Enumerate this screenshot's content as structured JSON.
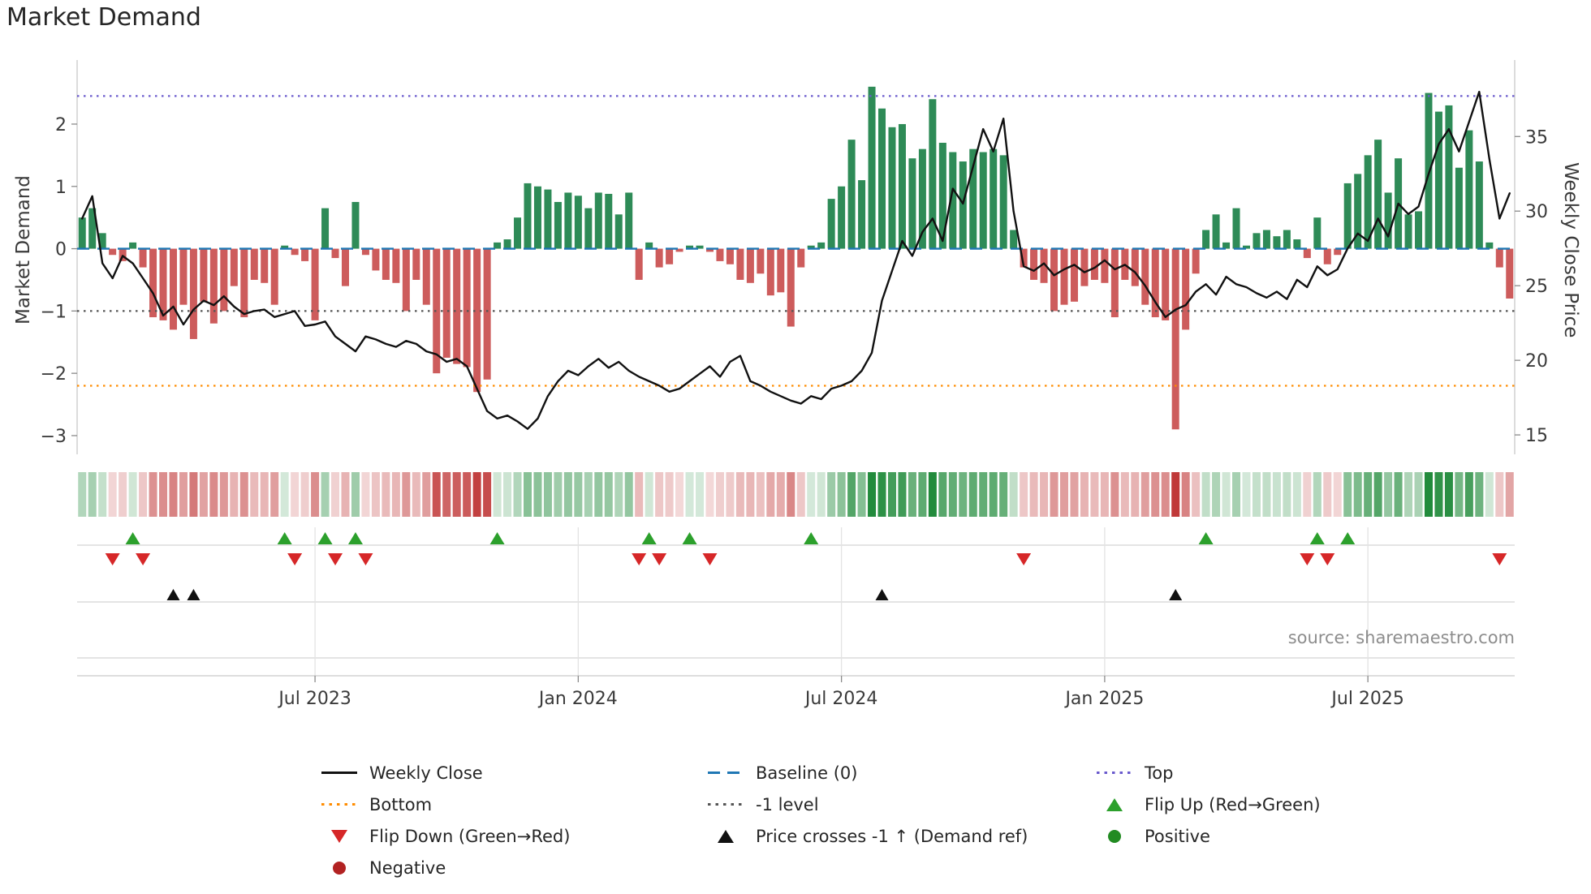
{
  "title": "Market Demand",
  "source": "source: sharemaestro.com",
  "axes": {
    "left_label": "Market Demand",
    "right_label": "Weekly Close Price",
    "left_ticks": [
      2,
      1,
      0,
      -1,
      -2,
      -3
    ],
    "right_ticks": [
      35,
      30,
      25,
      20,
      15
    ],
    "x_ticks": [
      {
        "label": "Jul 2023",
        "week": 23
      },
      {
        "label": "Jan 2024",
        "week": 49
      },
      {
        "label": "Jul 2024",
        "week": 75
      },
      {
        "label": "Jan 2025",
        "week": 101
      },
      {
        "label": "Jul 2025",
        "week": 127
      }
    ]
  },
  "chart_data": {
    "type": "bar",
    "n_weeks": 142,
    "ylim_left": [
      -3.3,
      2.95
    ],
    "ylim_right": [
      13.7,
      39.8
    ],
    "series": [
      {
        "name": "Market Demand",
        "type": "bar",
        "axis": "left",
        "values": [
          0.5,
          0.65,
          0.25,
          -0.1,
          -0.2,
          0.1,
          -0.3,
          -1.1,
          -1.15,
          -1.3,
          -0.9,
          -1.45,
          -0.85,
          -1.2,
          -1.0,
          -0.6,
          -1.1,
          -0.5,
          -0.55,
          -0.9,
          0.05,
          -0.1,
          -0.2,
          -1.15,
          0.65,
          -0.15,
          -0.6,
          0.75,
          -0.1,
          -0.35,
          -0.5,
          -0.55,
          -1.0,
          -0.5,
          -0.9,
          -2.0,
          -1.75,
          -1.85,
          -1.9,
          -2.3,
          -2.1,
          0.1,
          0.15,
          0.5,
          1.05,
          1.0,
          0.95,
          0.75,
          0.9,
          0.85,
          0.65,
          0.9,
          0.88,
          0.55,
          0.9,
          -0.5,
          0.1,
          -0.3,
          -0.25,
          -0.05,
          0.05,
          0.05,
          -0.05,
          -0.2,
          -0.25,
          -0.5,
          -0.55,
          -0.4,
          -0.75,
          -0.7,
          -1.25,
          -0.3,
          0.05,
          0.1,
          0.8,
          1.0,
          1.75,
          1.1,
          2.6,
          2.25,
          1.95,
          2.0,
          1.45,
          1.6,
          2.4,
          1.7,
          1.55,
          1.4,
          1.6,
          1.55,
          1.6,
          1.5,
          0.3,
          -0.3,
          -0.5,
          -0.55,
          -1.0,
          -0.9,
          -0.85,
          -0.6,
          -0.5,
          -0.55,
          -1.1,
          -0.5,
          -0.6,
          -0.9,
          -1.1,
          -1.15,
          -2.9,
          -1.3,
          -0.4,
          0.3,
          0.55,
          0.1,
          0.65,
          0.05,
          0.25,
          0.3,
          0.2,
          0.3,
          0.15,
          -0.15,
          0.5,
          -0.25,
          -0.1,
          1.05,
          1.2,
          1.5,
          1.75,
          0.9,
          1.45,
          0.55,
          0.6,
          2.5,
          2.2,
          2.3,
          1.3,
          1.9,
          1.4,
          0.1,
          -0.3,
          -0.8
        ]
      },
      {
        "name": "Weekly Close",
        "type": "line",
        "axis": "right",
        "values": [
          29.5,
          31.0,
          26.5,
          25.5,
          27.0,
          26.5,
          25.5,
          24.5,
          23.0,
          23.6,
          22.4,
          23.4,
          24.0,
          23.7,
          24.3,
          23.6,
          23.1,
          23.3,
          23.4,
          22.9,
          23.1,
          23.3,
          22.3,
          22.4,
          22.6,
          21.6,
          21.1,
          20.6,
          21.6,
          21.4,
          21.1,
          20.9,
          21.3,
          21.1,
          20.6,
          20.4,
          19.9,
          20.1,
          19.6,
          18.1,
          16.6,
          16.1,
          16.3,
          15.9,
          15.4,
          16.1,
          17.6,
          18.6,
          19.3,
          19.0,
          19.6,
          20.1,
          19.5,
          19.9,
          19.3,
          18.9,
          18.6,
          18.3,
          17.9,
          18.1,
          18.6,
          19.1,
          19.6,
          18.9,
          19.9,
          20.3,
          18.6,
          18.3,
          17.9,
          17.6,
          17.3,
          17.1,
          17.6,
          17.4,
          18.1,
          18.3,
          18.6,
          19.3,
          20.5,
          24.0,
          26.0,
          28.0,
          27.0,
          28.6,
          29.5,
          28.0,
          31.5,
          30.5,
          33.0,
          35.5,
          34.0,
          36.2,
          30.0,
          26.3,
          26.0,
          26.5,
          25.7,
          26.1,
          26.4,
          25.9,
          26.2,
          26.7,
          26.1,
          26.4,
          25.9,
          25.0,
          23.9,
          22.9,
          23.4,
          23.7,
          24.6,
          25.1,
          24.4,
          25.6,
          25.1,
          24.9,
          24.5,
          24.2,
          24.6,
          24.1,
          25.4,
          24.9,
          26.3,
          25.7,
          26.1,
          27.5,
          28.5,
          28.0,
          29.5,
          28.3,
          30.5,
          29.8,
          30.3,
          32.5,
          34.5,
          35.5,
          34.0,
          36.0,
          38.0,
          33.5,
          29.5,
          31.2
        ]
      }
    ],
    "reference_lines": [
      {
        "name": "Top",
        "value": 2.45,
        "style": "dotted",
        "color": "#6a5acd"
      },
      {
        "name": "Baseline (0)",
        "value": 0,
        "style": "dashed",
        "color": "#1f77b4"
      },
      {
        "name": "-1 level",
        "value": -1,
        "style": "dotted",
        "color": "#555555"
      },
      {
        "name": "Bottom",
        "value": -2.2,
        "style": "dotted",
        "color": "#ff8c00"
      }
    ],
    "markers": {
      "flip_up_weeks": [
        5,
        20,
        24,
        27,
        41,
        56,
        60,
        72,
        111,
        122,
        125
      ],
      "flip_down_weeks": [
        3,
        6,
        21,
        25,
        28,
        55,
        57,
        62,
        93,
        121,
        123,
        140
      ],
      "price_cross_weeks": [
        9,
        11,
        79,
        108
      ]
    }
  },
  "colors": {
    "bar_positive": "#2e8b57",
    "bar_negative": "#cd5c5c",
    "price_line": "#111111",
    "heat_positive": "34,139,60",
    "heat_negative": "192,57,57"
  },
  "legend": {
    "items": [
      {
        "label": "Weekly Close",
        "swatch": "line",
        "color": "#111111"
      },
      {
        "label": "Baseline (0)",
        "swatch": "dashed",
        "color": "#1f77b4"
      },
      {
        "label": "Top",
        "swatch": "dotted",
        "color": "#6a5acd"
      },
      {
        "label": "Bottom",
        "swatch": "dotted",
        "color": "#ff8c00"
      },
      {
        "label": "-1 level",
        "swatch": "dotted",
        "color": "#555555"
      },
      {
        "label": "Flip Up (Red→Green)",
        "swatch": "triangle-up",
        "color": "#2ca02c"
      },
      {
        "label": "Flip Down (Green→Red)",
        "swatch": "triangle-down",
        "color": "#d62728"
      },
      {
        "label": "Price crosses -1 ↑ (Demand ref)",
        "swatch": "triangle-up",
        "color": "#111111"
      },
      {
        "label": "Positive",
        "swatch": "circle",
        "color": "#228b22"
      },
      {
        "label": "Negative",
        "swatch": "circle",
        "color": "#b22222"
      }
    ]
  }
}
